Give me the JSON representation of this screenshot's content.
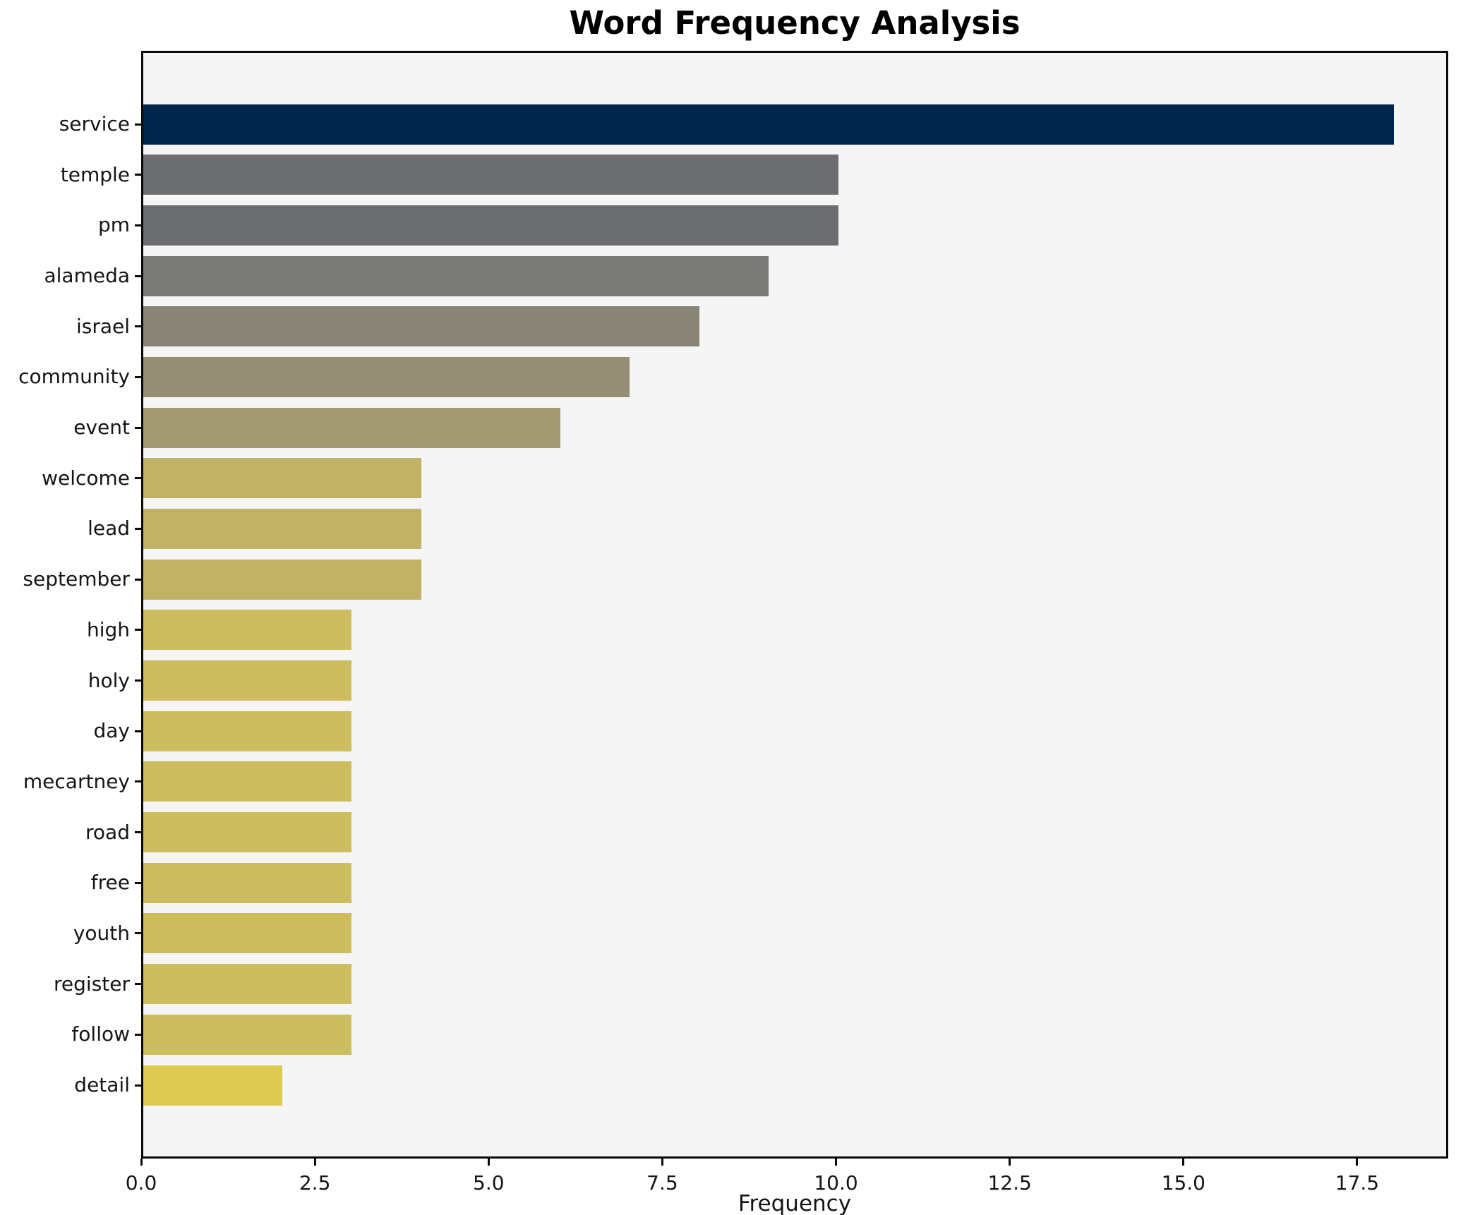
{
  "title": "Word Frequency Analysis",
  "chart_data": {
    "type": "bar",
    "orientation": "horizontal",
    "title": "Word Frequency Analysis",
    "xlabel": "Frequency",
    "ylabel": "",
    "categories": [
      "service",
      "temple",
      "pm",
      "alameda",
      "israel",
      "community",
      "event",
      "welcome",
      "lead",
      "september",
      "high",
      "holy",
      "day",
      "mecartney",
      "road",
      "free",
      "youth",
      "register",
      "follow",
      "detail"
    ],
    "values": [
      18,
      10,
      10,
      9,
      8,
      7,
      6,
      4,
      4,
      4,
      3,
      3,
      3,
      3,
      3,
      3,
      3,
      3,
      3,
      2
    ],
    "bar_colors": [
      "#02254e",
      "#6c6d70",
      "#6c6d70",
      "#7a7a78",
      "#888577",
      "#948e75",
      "#a39a72",
      "#c2b266",
      "#c2b266",
      "#c2b266",
      "#cdbd5f",
      "#cdbd5f",
      "#cdbd5f",
      "#cdbd5f",
      "#cdbd5f",
      "#cdbd5f",
      "#cdbd5f",
      "#cdbd5f",
      "#cdbd5f",
      "#ddca51"
    ],
    "x_ticks": [
      0.0,
      2.5,
      5.0,
      7.5,
      10.0,
      12.5,
      15.0,
      17.5
    ],
    "x_tick_labels": [
      "0.0",
      "2.5",
      "5.0",
      "7.5",
      "10.0",
      "12.5",
      "15.0",
      "17.5"
    ],
    "xlim": [
      0,
      18.75
    ],
    "grid": false,
    "legend": "none",
    "plot_bg": "#f6f5f6",
    "figure_bg": "#ffffff",
    "spine_color": "#0a0a0a"
  }
}
